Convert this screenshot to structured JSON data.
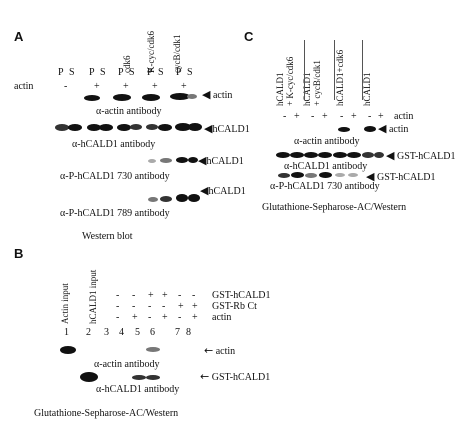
{
  "panelA": {
    "letter": "A",
    "col_labels": [
      "cdk6",
      "K-cyc/cdk6",
      "cycB/cdk1"
    ],
    "ps_labels": [
      "P",
      "S",
      "P",
      "S",
      "P",
      "S",
      "P",
      "S",
      "P",
      "S"
    ],
    "actin_label": "actin",
    "actin_row": [
      "-",
      "+",
      "+",
      "+",
      "+"
    ],
    "blots": [
      {
        "arrow_label": "actin",
        "caption": "α-actin antibody"
      },
      {
        "arrow_label": "hCALD1",
        "caption": "α-hCALD1 antibody"
      },
      {
        "arrow_label": "hCALD1",
        "caption": "α-P-hCALD1 730 antibody"
      },
      {
        "arrow_label": "hCALD1",
        "caption": "α-P-hCALD1 789 antibody"
      }
    ],
    "footer": "Western blot"
  },
  "panelC": {
    "letter": "C",
    "col_labels": [
      "hCALD1",
      "+ K-cyc/cdk6",
      "hCALD1",
      "+ cycB/cdk1",
      "hCALD1+cdk6",
      "hCALD1"
    ],
    "actin_label": "actin",
    "actin_row": [
      "-",
      "+",
      "-",
      "+",
      "-",
      "+",
      "-",
      "+"
    ],
    "blots": [
      {
        "arrow_label": "actin",
        "caption": "α-actin antibody"
      },
      {
        "arrow_label": "GST-hCALD1",
        "caption": "α-hCALD1 antibody"
      },
      {
        "arrow_label": "GST-hCALD1",
        "caption": "α-P-hCALD1 730 antibody"
      }
    ],
    "footer": "Glutathione-Sepharose-AC/Western"
  },
  "panelB": {
    "letter": "B",
    "col_labels": [
      "Actin input",
      "hCALD1 input"
    ],
    "rows": [
      {
        "label": "GST-hCALD1",
        "marks": [
          "-",
          "-",
          "+",
          "+",
          "-",
          "-"
        ]
      },
      {
        "label": "GST-Rb Ct",
        "marks": [
          "-",
          "-",
          "-",
          "-",
          "+",
          "+"
        ]
      },
      {
        "label": "actin",
        "marks": [
          "-",
          "+",
          "-",
          "+",
          "-",
          "+"
        ]
      }
    ],
    "lane_numbers": [
      "1",
      "2",
      "3",
      "4",
      "5",
      "6",
      "7",
      "8"
    ],
    "blots": [
      {
        "arrow_label": "actin",
        "caption": "α-actin antibody"
      },
      {
        "arrow_label": "GST-hCALD1",
        "caption": "α-hCALD1 antibody"
      }
    ],
    "footer": "Glutathione-Sepharose-AC/Western"
  }
}
